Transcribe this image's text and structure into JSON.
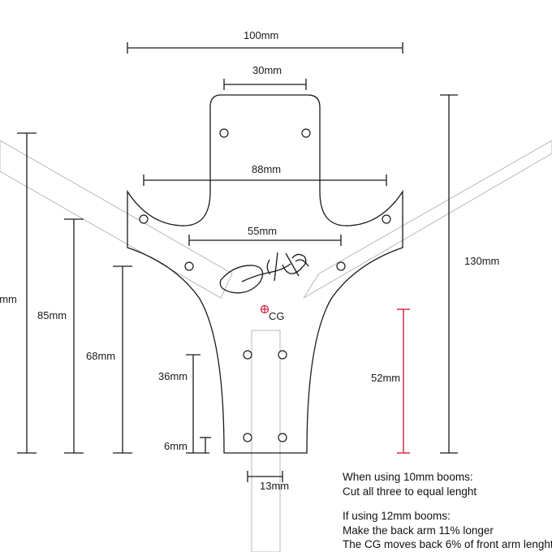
{
  "diagram": {
    "dimensions": {
      "overall_width": "100mm",
      "top_tab_width": "30mm",
      "front_arm_span": "88mm",
      "inner_arm_span": "55mm",
      "total_length": "130mm",
      "left_dim_1": "6mm",
      "left_dim_2": "85mm",
      "left_dim_3": "68mm",
      "left_dim_4": "36mm",
      "left_dim_5": "6mm",
      "cg_distance": "52mm",
      "boom_width": "13mm"
    },
    "cg_label": "CG",
    "colors": {
      "outline": "#1a1a1a",
      "boom": "#b8b8b8",
      "cg_marker": "#d0203a",
      "highlight_dim": "#d0203a"
    },
    "logo_text": "cl Vitesse"
  },
  "notes": {
    "line1": "When using 10mm booms:",
    "line2": "Cut all three to equal lenght",
    "line3": "If using 12mm booms:",
    "line4": "Make the back arm 11% longer",
    "line5": "The CG moves back 6% of front arm lenght"
  }
}
